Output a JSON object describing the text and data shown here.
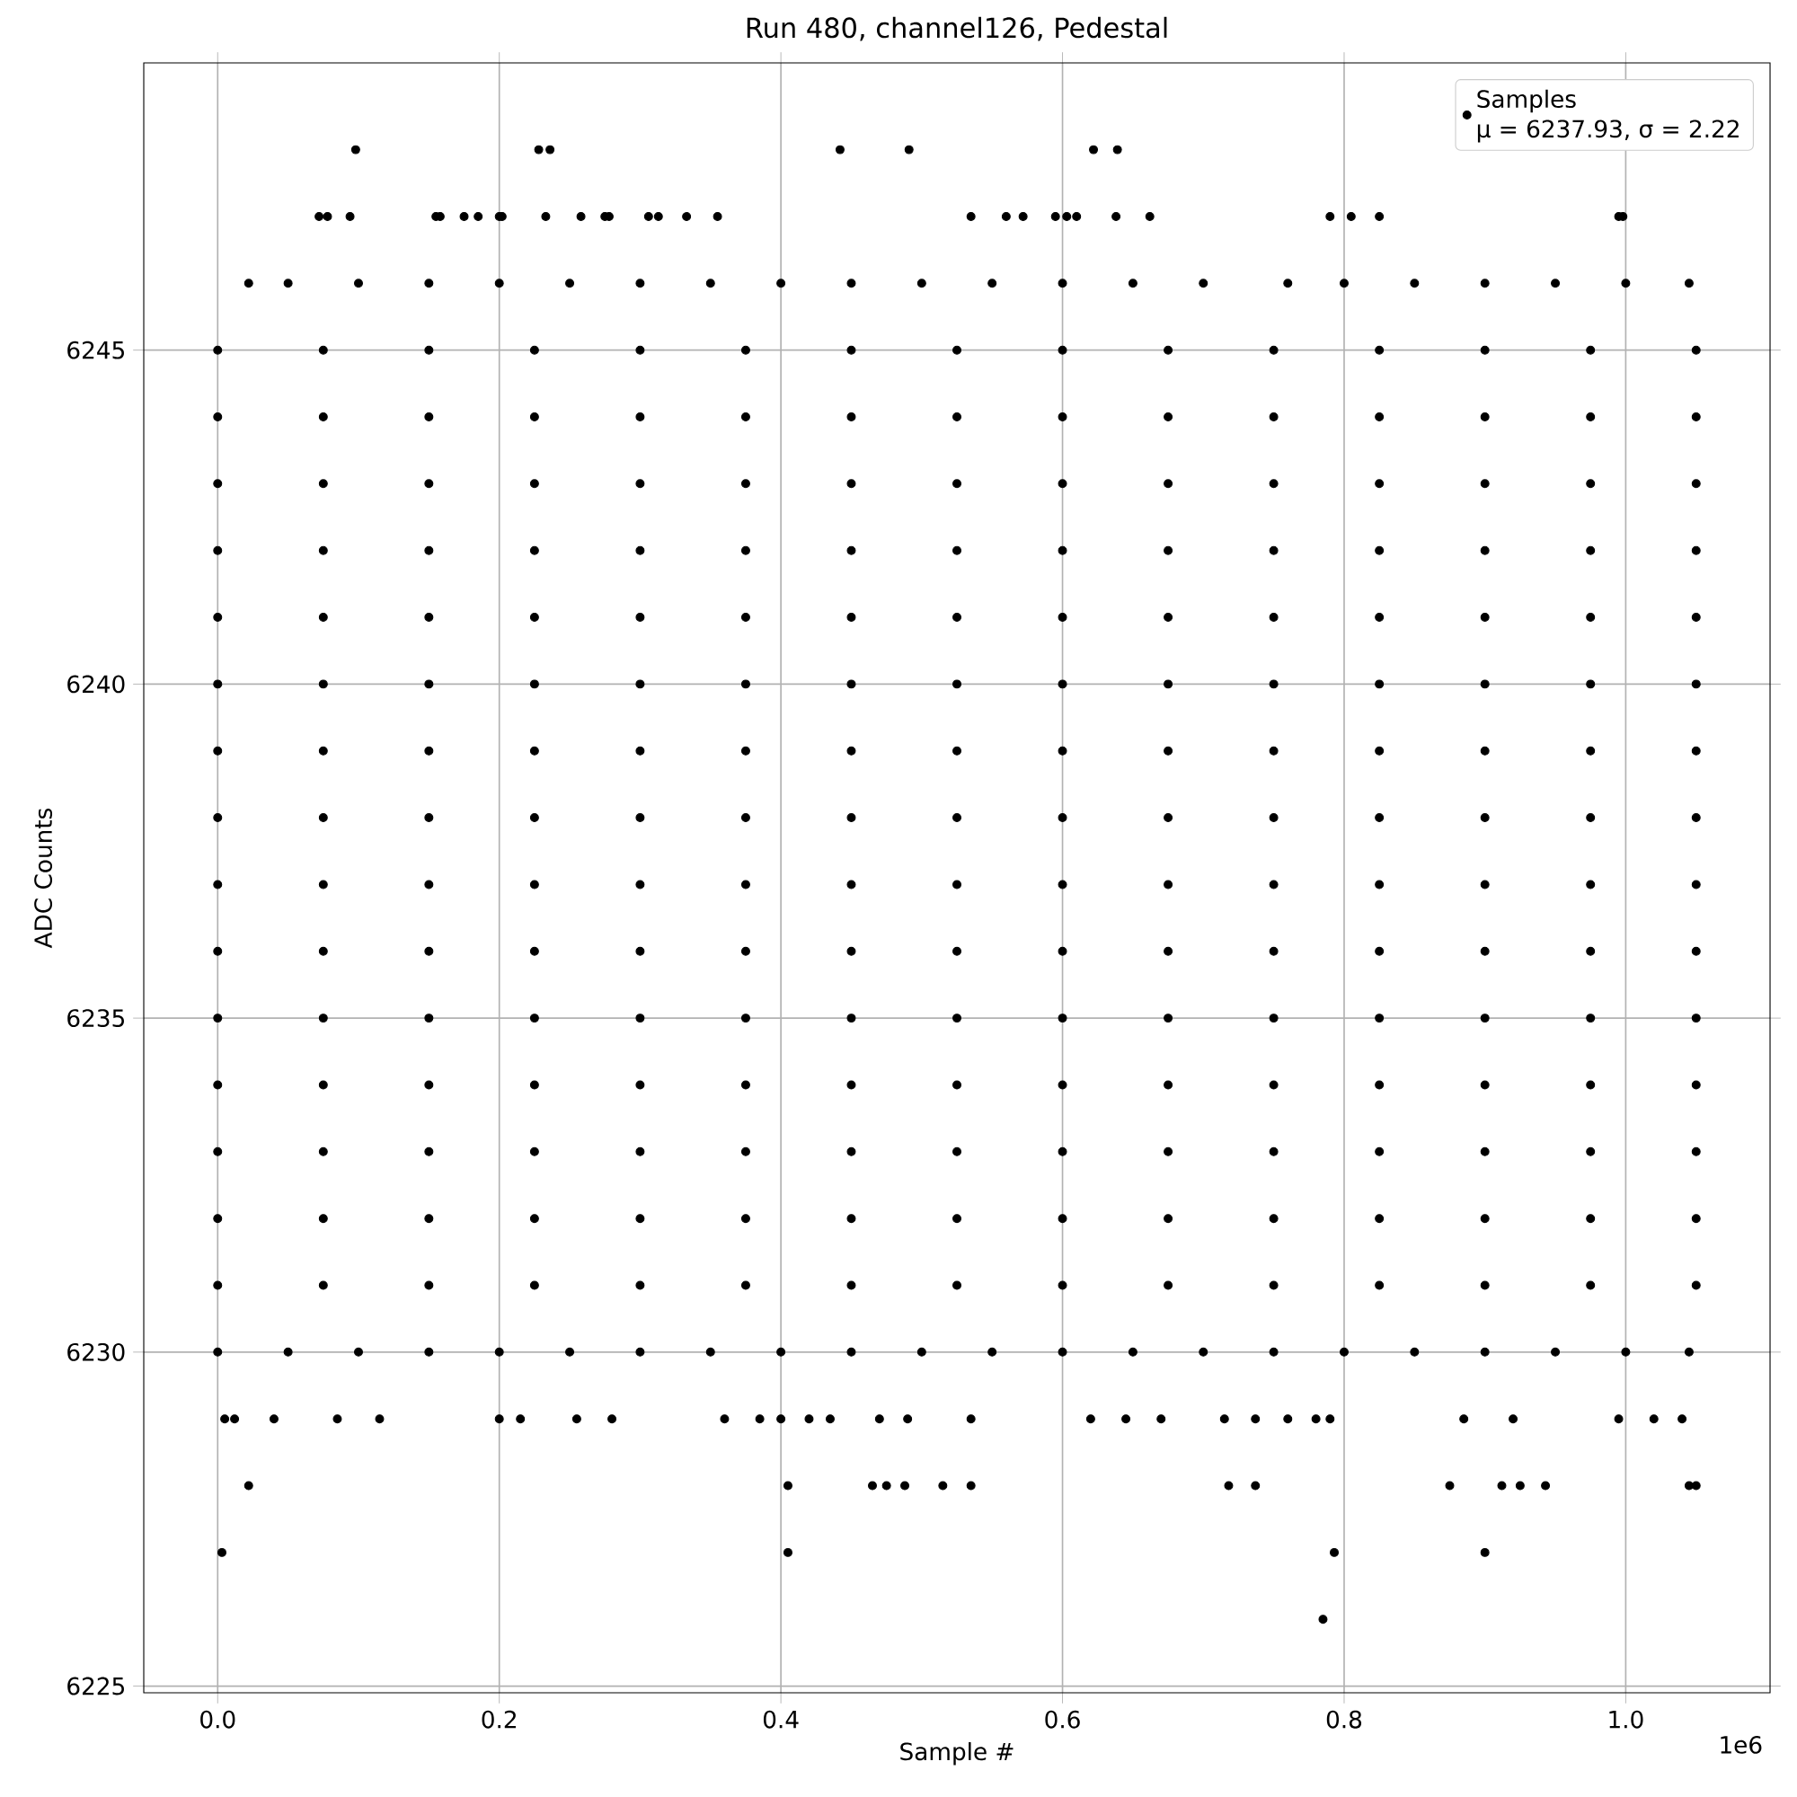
{
  "chart_data": {
    "type": "scatter",
    "title": "Run 480, channel126, Pedestal",
    "xlabel": "Sample #",
    "ylabel": "ADC Counts",
    "annotations": [
      "μ = 6237.93, σ = 2.22",
      "1e6"
    ],
    "xlim": [
      -0.0525,
      1.1025
    ],
    "ylim": [
      6224.9,
      6249.3
    ],
    "xticks": [
      {
        "value": 0,
        "label": "0.0"
      },
      0.2,
      0.4,
      0.6,
      0.8,
      {
        "value": 1,
        "label": "1.0"
      }
    ],
    "yticks": [
      6225,
      6230,
      6235,
      6240,
      6245
    ],
    "grid": true,
    "legend": "top right",
    "marker": "circle",
    "series": [
      {
        "name": "Samples",
        "color": "#000000",
        "x": [
          0.098,
          0.228,
          0.236,
          0.442,
          0.491,
          0.622,
          0.639,
          0.072,
          0.078,
          0.094,
          0.155,
          0.158,
          0.175,
          0.185,
          0.2,
          0.202,
          0.233,
          0.258,
          0.275,
          0.278,
          0.306,
          0.313,
          0.333,
          0.355,
          0.535,
          0.56,
          0.572,
          0.595,
          0.603,
          0.61,
          0.638,
          0.662,
          0.79,
          0.805,
          0.825,
          0.995,
          0.998,
          0.022,
          0.05,
          0.1,
          0.15,
          0.2,
          0.25,
          0.3,
          0.35,
          0.4,
          0.45,
          0.5,
          0.55,
          0.6,
          0.65,
          0.7,
          0.76,
          0.8,
          0.85,
          0.9,
          0.95,
          1.0,
          1.045,
          0,
          0.075,
          0.15,
          0.225,
          0.3,
          0.375,
          0.45,
          0.525,
          0.6,
          0.675,
          0.75,
          0.825,
          0.9,
          0.975,
          1.05,
          0,
          0.075,
          0.15,
          0.225,
          0.3,
          0.375,
          0.45,
          0.525,
          0.6,
          0.675,
          0.75,
          0.825,
          0.9,
          0.975,
          1.05,
          0,
          0.075,
          0.15,
          0.225,
          0.3,
          0.375,
          0.45,
          0.525,
          0.6,
          0.675,
          0.75,
          0.825,
          0.9,
          0.975,
          1.05,
          0,
          0.075,
          0.15,
          0.225,
          0.3,
          0.375,
          0.45,
          0.525,
          0.6,
          0.675,
          0.75,
          0.825,
          0.9,
          0.975,
          1.05,
          0,
          0.075,
          0.15,
          0.225,
          0.3,
          0.375,
          0.45,
          0.525,
          0.6,
          0.675,
          0.75,
          0.825,
          0.9,
          0.975,
          1.05,
          0,
          0.075,
          0.15,
          0.225,
          0.3,
          0.375,
          0.45,
          0.525,
          0.6,
          0.675,
          0.75,
          0.825,
          0.9,
          0.975,
          1.05,
          0,
          0.075,
          0.15,
          0.225,
          0.3,
          0.375,
          0.45,
          0.525,
          0.6,
          0.675,
          0.75,
          0.825,
          0.9,
          0.975,
          1.05,
          0,
          0.075,
          0.15,
          0.225,
          0.3,
          0.375,
          0.45,
          0.525,
          0.6,
          0.675,
          0.75,
          0.825,
          0.9,
          0.975,
          1.05,
          0,
          0.075,
          0.15,
          0.225,
          0.3,
          0.375,
          0.45,
          0.525,
          0.6,
          0.675,
          0.75,
          0.825,
          0.9,
          0.975,
          1.05,
          0,
          0.075,
          0.15,
          0.225,
          0.3,
          0.375,
          0.45,
          0.525,
          0.6,
          0.675,
          0.75,
          0.825,
          0.9,
          0.975,
          1.05,
          0,
          0.075,
          0.15,
          0.225,
          0.3,
          0.375,
          0.45,
          0.525,
          0.6,
          0.675,
          0.75,
          0.825,
          0.9,
          0.975,
          1.05,
          0,
          0.075,
          0.15,
          0.225,
          0.3,
          0.375,
          0.45,
          0.525,
          0.6,
          0.675,
          0.75,
          0.825,
          0.9,
          0.975,
          1.05,
          0,
          0.075,
          0.15,
          0.225,
          0.3,
          0.375,
          0.45,
          0.525,
          0.6,
          0.675,
          0.75,
          0.825,
          0.9,
          0.975,
          1.05,
          0,
          0.075,
          0.15,
          0.225,
          0.3,
          0.375,
          0.45,
          0.525,
          0.6,
          0.675,
          0.75,
          0.825,
          0.9,
          0.975,
          1.05,
          0,
          0.075,
          0.15,
          0.225,
          0.3,
          0.375,
          0.45,
          0.525,
          0.6,
          0.675,
          0.75,
          0.825,
          0.9,
          0.975,
          1.05,
          0,
          0.05,
          0.1,
          0.15,
          0.2,
          0.25,
          0.3,
          0.35,
          0.4,
          0.45,
          0.5,
          0.55,
          0.6,
          0.65,
          0.7,
          0.75,
          0.8,
          0.85,
          0.9,
          0.95,
          1.0,
          1.045,
          0.005,
          0.012,
          0.04,
          0.085,
          0.115,
          0.2,
          0.215,
          0.255,
          0.28,
          0.36,
          0.385,
          0.4,
          0.42,
          0.435,
          0.47,
          0.49,
          0.535,
          0.62,
          0.645,
          0.67,
          0.715,
          0.737,
          0.76,
          0.78,
          0.79,
          0.885,
          0.92,
          0.995,
          1.02,
          1.04,
          0.022,
          0.405,
          0.465,
          0.475,
          0.488,
          0.515,
          0.535,
          0.718,
          0.737,
          0.875,
          0.912,
          0.925,
          0.943,
          1.045,
          1.05,
          0.003,
          0.405,
          0.793,
          0.9,
          0.785
        ],
        "values": [
          6248,
          6248,
          6248,
          6248,
          6248,
          6248,
          6248,
          6247,
          6247,
          6247,
          6247,
          6247,
          6247,
          6247,
          6247,
          6247,
          6247,
          6247,
          6247,
          6247,
          6247,
          6247,
          6247,
          6247,
          6247,
          6247,
          6247,
          6247,
          6247,
          6247,
          6247,
          6247,
          6247,
          6247,
          6247,
          6247,
          6247,
          6246,
          6246,
          6246,
          6246,
          6246,
          6246,
          6246,
          6246,
          6246,
          6246,
          6246,
          6246,
          6246,
          6246,
          6246,
          6246,
          6246,
          6246,
          6246,
          6246,
          6246,
          6246,
          6245,
          6245,
          6245,
          6245,
          6245,
          6245,
          6245,
          6245,
          6245,
          6245,
          6245,
          6245,
          6245,
          6245,
          6245,
          6244,
          6244,
          6244,
          6244,
          6244,
          6244,
          6244,
          6244,
          6244,
          6244,
          6244,
          6244,
          6244,
          6244,
          6244,
          6243,
          6243,
          6243,
          6243,
          6243,
          6243,
          6243,
          6243,
          6243,
          6243,
          6243,
          6243,
          6243,
          6243,
          6243,
          6242,
          6242,
          6242,
          6242,
          6242,
          6242,
          6242,
          6242,
          6242,
          6242,
          6242,
          6242,
          6242,
          6242,
          6242,
          6241,
          6241,
          6241,
          6241,
          6241,
          6241,
          6241,
          6241,
          6241,
          6241,
          6241,
          6241,
          6241,
          6241,
          6241,
          6240,
          6240,
          6240,
          6240,
          6240,
          6240,
          6240,
          6240,
          6240,
          6240,
          6240,
          6240,
          6240,
          6240,
          6240,
          6239,
          6239,
          6239,
          6239,
          6239,
          6239,
          6239,
          6239,
          6239,
          6239,
          6239,
          6239,
          6239,
          6239,
          6239,
          6238,
          6238,
          6238,
          6238,
          6238,
          6238,
          6238,
          6238,
          6238,
          6238,
          6238,
          6238,
          6238,
          6238,
          6238,
          6237,
          6237,
          6237,
          6237,
          6237,
          6237,
          6237,
          6237,
          6237,
          6237,
          6237,
          6237,
          6237,
          6237,
          6237,
          6236,
          6236,
          6236,
          6236,
          6236,
          6236,
          6236,
          6236,
          6236,
          6236,
          6236,
          6236,
          6236,
          6236,
          6236,
          6235,
          6235,
          6235,
          6235,
          6235,
          6235,
          6235,
          6235,
          6235,
          6235,
          6235,
          6235,
          6235,
          6235,
          6235,
          6234,
          6234,
          6234,
          6234,
          6234,
          6234,
          6234,
          6234,
          6234,
          6234,
          6234,
          6234,
          6234,
          6234,
          6234,
          6233,
          6233,
          6233,
          6233,
          6233,
          6233,
          6233,
          6233,
          6233,
          6233,
          6233,
          6233,
          6233,
          6233,
          6233,
          6232,
          6232,
          6232,
          6232,
          6232,
          6232,
          6232,
          6232,
          6232,
          6232,
          6232,
          6232,
          6232,
          6232,
          6232,
          6231,
          6231,
          6231,
          6231,
          6231,
          6231,
          6231,
          6231,
          6231,
          6231,
          6231,
          6231,
          6231,
          6231,
          6231,
          6230,
          6230,
          6230,
          6230,
          6230,
          6230,
          6230,
          6230,
          6230,
          6230,
          6230,
          6230,
          6230,
          6230,
          6230,
          6230,
          6230,
          6230,
          6230,
          6230,
          6230,
          6230,
          6229,
          6229,
          6229,
          6229,
          6229,
          6229,
          6229,
          6229,
          6229,
          6229,
          6229,
          6229,
          6229,
          6229,
          6229,
          6229,
          6229,
          6229,
          6229,
          6229,
          6229,
          6229,
          6229,
          6229,
          6229,
          6229,
          6229,
          6229,
          6229,
          6229,
          6228,
          6228,
          6228,
          6228,
          6228,
          6228,
          6228,
          6228,
          6228,
          6228,
          6228,
          6228,
          6228,
          6228,
          6228,
          6227,
          6227,
          6227,
          6227,
          6226
        ]
      }
    ]
  }
}
